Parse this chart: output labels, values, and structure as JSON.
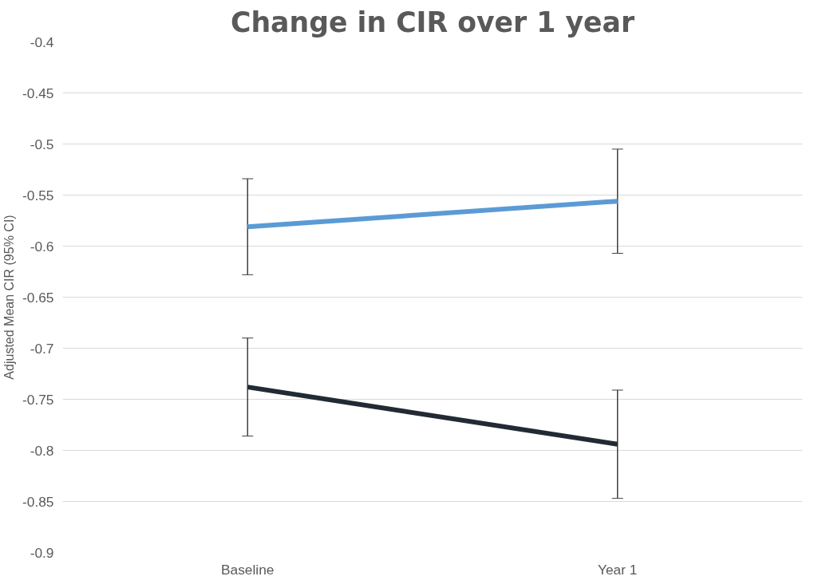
{
  "chart_data": {
    "type": "line",
    "title": "Change in CIR over 1 year",
    "ylabel": "Adjusted Mean CIR (95% CI)",
    "categories": [
      "Baseline",
      "Year 1"
    ],
    "series": [
      {
        "color": "#5b9bd5",
        "values": [
          -0.581,
          -0.556
        ],
        "errors": [
          0.047,
          0.051
        ]
      },
      {
        "color": "#222a35",
        "values": [
          -0.738,
          -0.794
        ],
        "errors": [
          0.048,
          0.053
        ]
      }
    ],
    "ylim": [
      -0.9,
      -0.4
    ],
    "yticks": [
      -0.9,
      -0.85,
      -0.8,
      -0.75,
      -0.7,
      -0.65,
      -0.6,
      -0.55,
      -0.5,
      -0.45,
      -0.4
    ],
    "grid": "y",
    "marker": "none",
    "line_style": "solid"
  }
}
